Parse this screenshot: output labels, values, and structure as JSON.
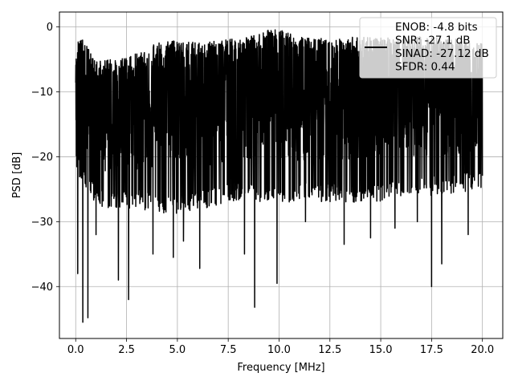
{
  "chart_data": {
    "type": "line",
    "xlabel": "Frequency [MHz]",
    "ylabel": "PSD [dB]",
    "xlim": [
      -0.8,
      21.0
    ],
    "ylim": [
      -48.0,
      2.3
    ],
    "xticks": [
      0.0,
      2.5,
      5.0,
      7.5,
      10.0,
      12.5,
      15.0,
      17.5,
      20.0
    ],
    "xtick_labels": [
      "0.0",
      "2.5",
      "5.0",
      "7.5",
      "10.0",
      "12.5",
      "15.0",
      "17.5",
      "20.0"
    ],
    "yticks": [
      0,
      -10,
      -20,
      -30,
      -40
    ],
    "ytick_labels": [
      "0",
      "−10",
      "−20",
      "−30",
      "−40"
    ],
    "grid": true,
    "legend_position": "top-right",
    "series": [
      {
        "name": "ENOB: -4.8 bits\nSNR: -27.1 dB\nSINAD: -27.12 dB\nSFDR: 0.44",
        "color": "#000000",
        "style": "dense-noise",
        "x_range": [
          0.0,
          20.0
        ],
        "upper_envelope": [
          [
            0.0,
            -4.0
          ],
          [
            0.1,
            -0.5
          ],
          [
            1.0,
            -5.2
          ],
          [
            2.5,
            -4.8
          ],
          [
            4.0,
            -2.4
          ],
          [
            5.0,
            -2.0
          ],
          [
            6.0,
            -2.4
          ],
          [
            7.5,
            -1.9
          ],
          [
            8.5,
            -1.5
          ],
          [
            9.7,
            -0.1
          ],
          [
            11.0,
            -1.5
          ],
          [
            12.5,
            -1.8
          ],
          [
            14.0,
            -1.5
          ],
          [
            15.0,
            -1.7
          ],
          [
            17.0,
            -1.5
          ],
          [
            18.5,
            -1.7
          ],
          [
            20.0,
            -2.5
          ]
        ],
        "lower_envelope": [
          [
            0.0,
            -22.0
          ],
          [
            1.0,
            -28.0
          ],
          [
            3.0,
            -28.0
          ],
          [
            5.0,
            -29.0
          ],
          [
            7.5,
            -27.0
          ],
          [
            10.0,
            -27.0
          ],
          [
            12.5,
            -27.0
          ],
          [
            15.0,
            -27.0
          ],
          [
            17.5,
            -26.0
          ],
          [
            20.0,
            -25.0
          ]
        ],
        "deep_nulls": [
          [
            0.1,
            -38.0
          ],
          [
            0.35,
            -45.5
          ],
          [
            0.6,
            -44.8
          ],
          [
            1.0,
            -32.0
          ],
          [
            2.1,
            -39.0
          ],
          [
            2.6,
            -42.0
          ],
          [
            3.8,
            -35.0
          ],
          [
            4.8,
            -35.5
          ],
          [
            5.3,
            -33.0
          ],
          [
            6.1,
            -37.2
          ],
          [
            8.3,
            -35.0
          ],
          [
            8.8,
            -43.2
          ],
          [
            9.9,
            -39.5
          ],
          [
            11.3,
            -30.0
          ],
          [
            13.2,
            -33.5
          ],
          [
            14.5,
            -32.5
          ],
          [
            15.7,
            -31.0
          ],
          [
            16.8,
            -30.0
          ],
          [
            17.5,
            -40.0
          ],
          [
            18.0,
            -36.5
          ],
          [
            19.3,
            -32.0
          ]
        ]
      }
    ]
  }
}
